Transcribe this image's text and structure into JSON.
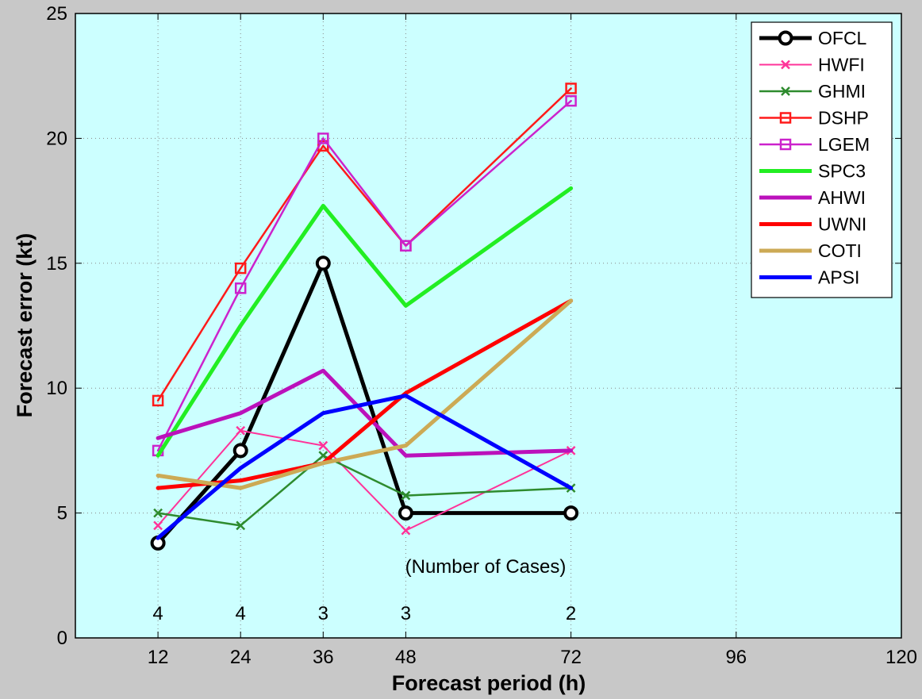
{
  "chart_data": {
    "type": "line",
    "xlabel": "Forecast period (h)",
    "ylabel": "Forecast error (kt)",
    "xlim": [
      0,
      120
    ],
    "ylim": [
      0,
      25
    ],
    "x_ticks": [
      12,
      24,
      36,
      48,
      72,
      96,
      120
    ],
    "y_ticks": [
      0,
      5,
      10,
      15,
      20,
      25
    ],
    "grid": true,
    "legend_position": "top-right",
    "plot_background": "#ccffff",
    "annotation": "(Number of Cases)",
    "case_counts": [
      {
        "x": 12,
        "label": "4"
      },
      {
        "x": 24,
        "label": "4"
      },
      {
        "x": 36,
        "label": "3"
      },
      {
        "x": 48,
        "label": "3"
      },
      {
        "x": 72,
        "label": "2"
      }
    ],
    "series": [
      {
        "name": "OFCL",
        "color": "#000000",
        "width": 5,
        "marker": "circle",
        "x": [
          12,
          24,
          36,
          48,
          72
        ],
        "y": [
          3.8,
          7.5,
          15.0,
          5.0,
          5.0
        ]
      },
      {
        "name": "HWFI",
        "color": "#ff3399",
        "width": 2,
        "marker": "x",
        "x": [
          12,
          24,
          36,
          48,
          72
        ],
        "y": [
          4.5,
          8.3,
          7.7,
          4.3,
          7.5
        ]
      },
      {
        "name": "GHMI",
        "color": "#2e8b2e",
        "width": 2.5,
        "marker": "x",
        "x": [
          12,
          24,
          36,
          48,
          72
        ],
        "y": [
          5.0,
          4.5,
          7.3,
          5.7,
          6.0
        ]
      },
      {
        "name": "DSHP",
        "color": "#ff1a1a",
        "width": 2.5,
        "marker": "square",
        "x": [
          12,
          24,
          36,
          48,
          72
        ],
        "y": [
          9.5,
          14.8,
          19.7,
          15.7,
          22.0
        ]
      },
      {
        "name": "LGEM",
        "color": "#cc22cc",
        "width": 2.5,
        "marker": "square",
        "x": [
          12,
          24,
          36,
          48,
          72
        ],
        "y": [
          7.5,
          14.0,
          20.0,
          15.7,
          21.5
        ]
      },
      {
        "name": "SPC3",
        "color": "#22ee22",
        "width": 5,
        "marker": "none",
        "x": [
          12,
          24,
          36,
          48,
          72
        ],
        "y": [
          7.3,
          12.5,
          17.3,
          13.3,
          18.0
        ]
      },
      {
        "name": "AHWI",
        "color": "#bb11bb",
        "width": 5,
        "marker": "none",
        "x": [
          12,
          24,
          36,
          48,
          72
        ],
        "y": [
          8.0,
          9.0,
          10.7,
          7.3,
          7.5
        ]
      },
      {
        "name": "UWNI",
        "color": "#ff0000",
        "width": 5,
        "marker": "none",
        "x": [
          12,
          24,
          36,
          48,
          72
        ],
        "y": [
          6.0,
          6.3,
          7.0,
          9.8,
          13.5
        ]
      },
      {
        "name": "COTI",
        "color": "#ccaa55",
        "width": 5,
        "marker": "none",
        "x": [
          12,
          24,
          36,
          48,
          72
        ],
        "y": [
          6.5,
          6.0,
          7.0,
          7.7,
          13.5
        ]
      },
      {
        "name": "APSI",
        "color": "#0000ff",
        "width": 5,
        "marker": "none",
        "x": [
          12,
          24,
          36,
          48,
          72
        ],
        "y": [
          4.0,
          6.8,
          9.0,
          9.7,
          6.0
        ]
      }
    ]
  }
}
